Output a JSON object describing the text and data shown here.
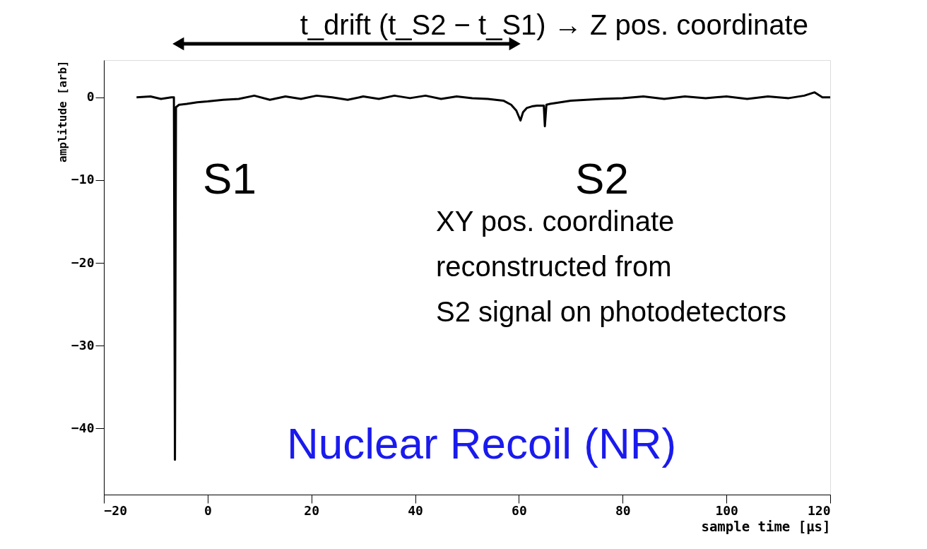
{
  "chart_data": {
    "type": "line",
    "xlabel": "sample time [µs]",
    "ylabel": "amplitude [arb]",
    "x": [
      -13.7,
      -11,
      -9,
      -7,
      -6.5,
      -6.3,
      -6.1,
      -5.5,
      -4,
      -2,
      0,
      3,
      6,
      9,
      12,
      15,
      18,
      21,
      24,
      27,
      30,
      33,
      36,
      39,
      42,
      45,
      48,
      51,
      54,
      57,
      58.5,
      59.5,
      60.3,
      60.8,
      61.5,
      62.5,
      63.5,
      64.8,
      65,
      65.3,
      66,
      68,
      70,
      73,
      76,
      80,
      84,
      88,
      92,
      96,
      100,
      104,
      108,
      112,
      115,
      117,
      118.5,
      120
    ],
    "series": [
      {
        "color": "#000000",
        "values": [
          0,
          0.1,
          -0.2,
          0,
          0,
          -43.8,
          -1.2,
          -0.9,
          -0.8,
          -0.6,
          -0.5,
          -0.3,
          -0.2,
          0.2,
          -0.3,
          0.1,
          -0.2,
          0.2,
          0,
          -0.3,
          0.1,
          -0.2,
          0.2,
          -0.1,
          0.2,
          -0.2,
          0.1,
          -0.1,
          -0.2,
          -0.4,
          -0.9,
          -1.6,
          -2.8,
          -1.8,
          -1.3,
          -1.1,
          -1.0,
          -1.0,
          -3.5,
          -0.9,
          -0.8,
          -0.6,
          -0.4,
          -0.3,
          -0.2,
          -0.1,
          0.1,
          -0.2,
          0.1,
          -0.1,
          0.1,
          -0.2,
          0.1,
          -0.1,
          0.2,
          0.6,
          0,
          0
        ]
      }
    ],
    "xlim": [
      -20,
      120
    ],
    "xticks": [
      {
        "value": -20,
        "label": "−20"
      },
      0,
      20,
      40,
      60,
      80,
      100,
      120
    ],
    "ylim": [
      -48,
      4.5
    ],
    "yticks": [
      {
        "value": -40,
        "label": "−40"
      },
      {
        "value": -30,
        "label": "−30"
      },
      {
        "value": -20,
        "label": "−20"
      },
      {
        "value": -10,
        "label": "−10"
      },
      0
    ],
    "grid": false,
    "marker": "none",
    "line_style": "solid",
    "annotations": [
      "S1",
      "S2",
      "t_drift (t_S2 − t_S1) → Z pos. coordinate",
      "XY pos. coordinate\nreconstructed from\nS2 signal on photodetectors",
      "Nuclear Recoil (NR)"
    ]
  }
}
